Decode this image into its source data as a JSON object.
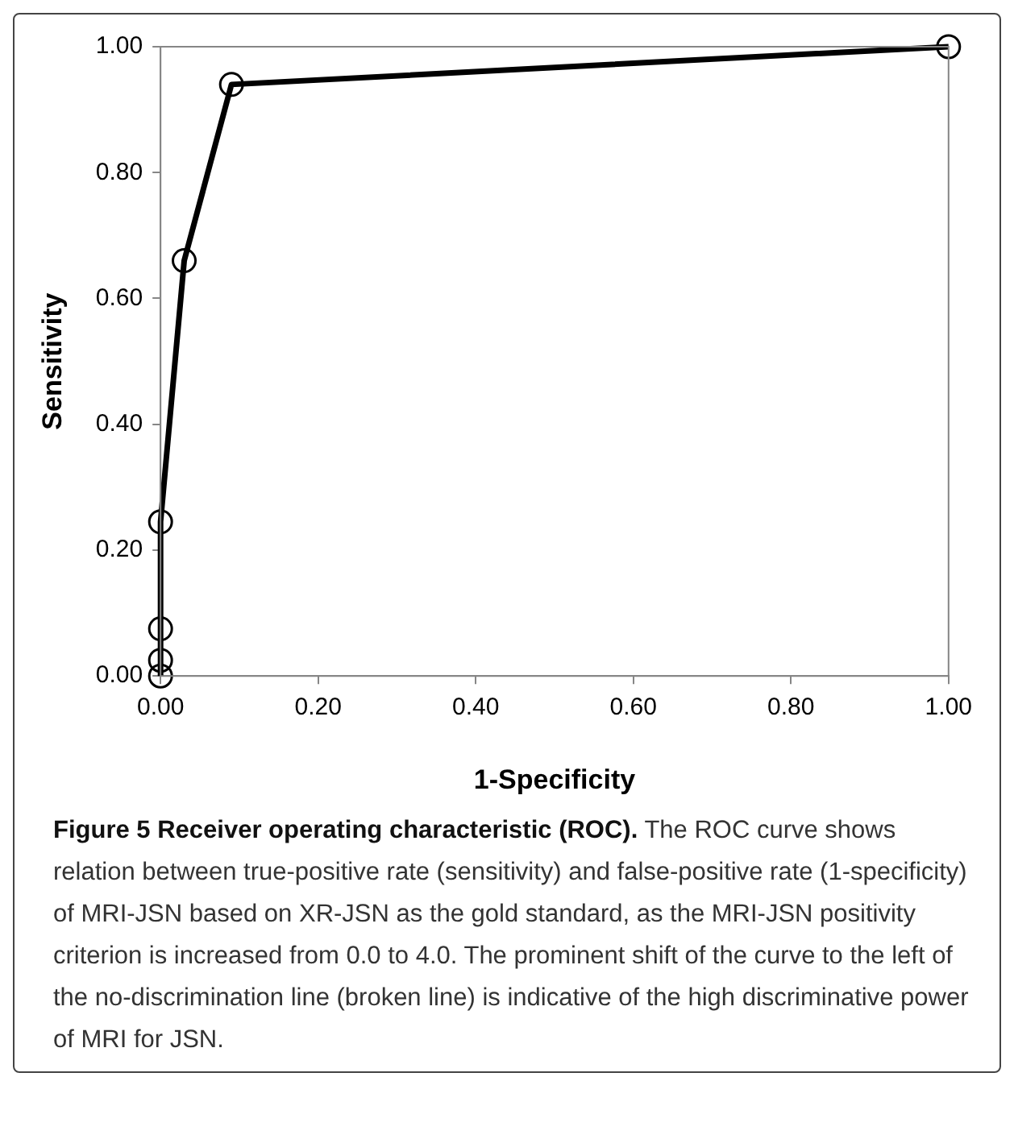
{
  "chart_data": {
    "type": "line",
    "title": "Figure 5 Receiver operating characteristic (ROC).",
    "xlabel": "1-Specificity",
    "ylabel": "Sensitivity",
    "x": [
      0,
      0,
      0,
      0,
      0.03,
      0.09,
      1
    ],
    "series": [
      {
        "color": "#000000",
        "values": [
          0,
          0.025,
          0.075,
          0.245,
          0.66,
          0.94,
          1
        ]
      }
    ],
    "xlim": [
      0,
      1
    ],
    "ylim": [
      0,
      1
    ],
    "xticks": [
      {
        "value": 0,
        "label": "0.00"
      },
      {
        "value": 0.2,
        "label": "0.20"
      },
      {
        "value": 0.4,
        "label": "0.40"
      },
      {
        "value": 0.6,
        "label": "0.60"
      },
      {
        "value": 0.8,
        "label": "0.80"
      },
      {
        "value": 1,
        "label": "1.00"
      }
    ],
    "yticks": [
      {
        "value": 0,
        "label": "0.00"
      },
      {
        "value": 0.2,
        "label": "0.20"
      },
      {
        "value": 0.4,
        "label": "0.40"
      },
      {
        "value": 0.6,
        "label": "0.60"
      },
      {
        "value": 0.8,
        "label": "0.80"
      },
      {
        "value": 1,
        "label": "1.00"
      }
    ],
    "grid": false,
    "legend": false,
    "marker": "circle",
    "line_style": "solid",
    "annotations": [
      "The ROC curve shows relation between true-positive rate (sensitivity) and false-positive rate (1-specificity) of MRI-JSN based on XR-JSN as the gold standard, as the MRI-JSN positivity criterion is increased from 0.0 to 4.0. The prominent shift of the curve to the left of the no-discrimination line (broken line) is indicative of the high discriminative power of MRI for JSN."
    ]
  }
}
